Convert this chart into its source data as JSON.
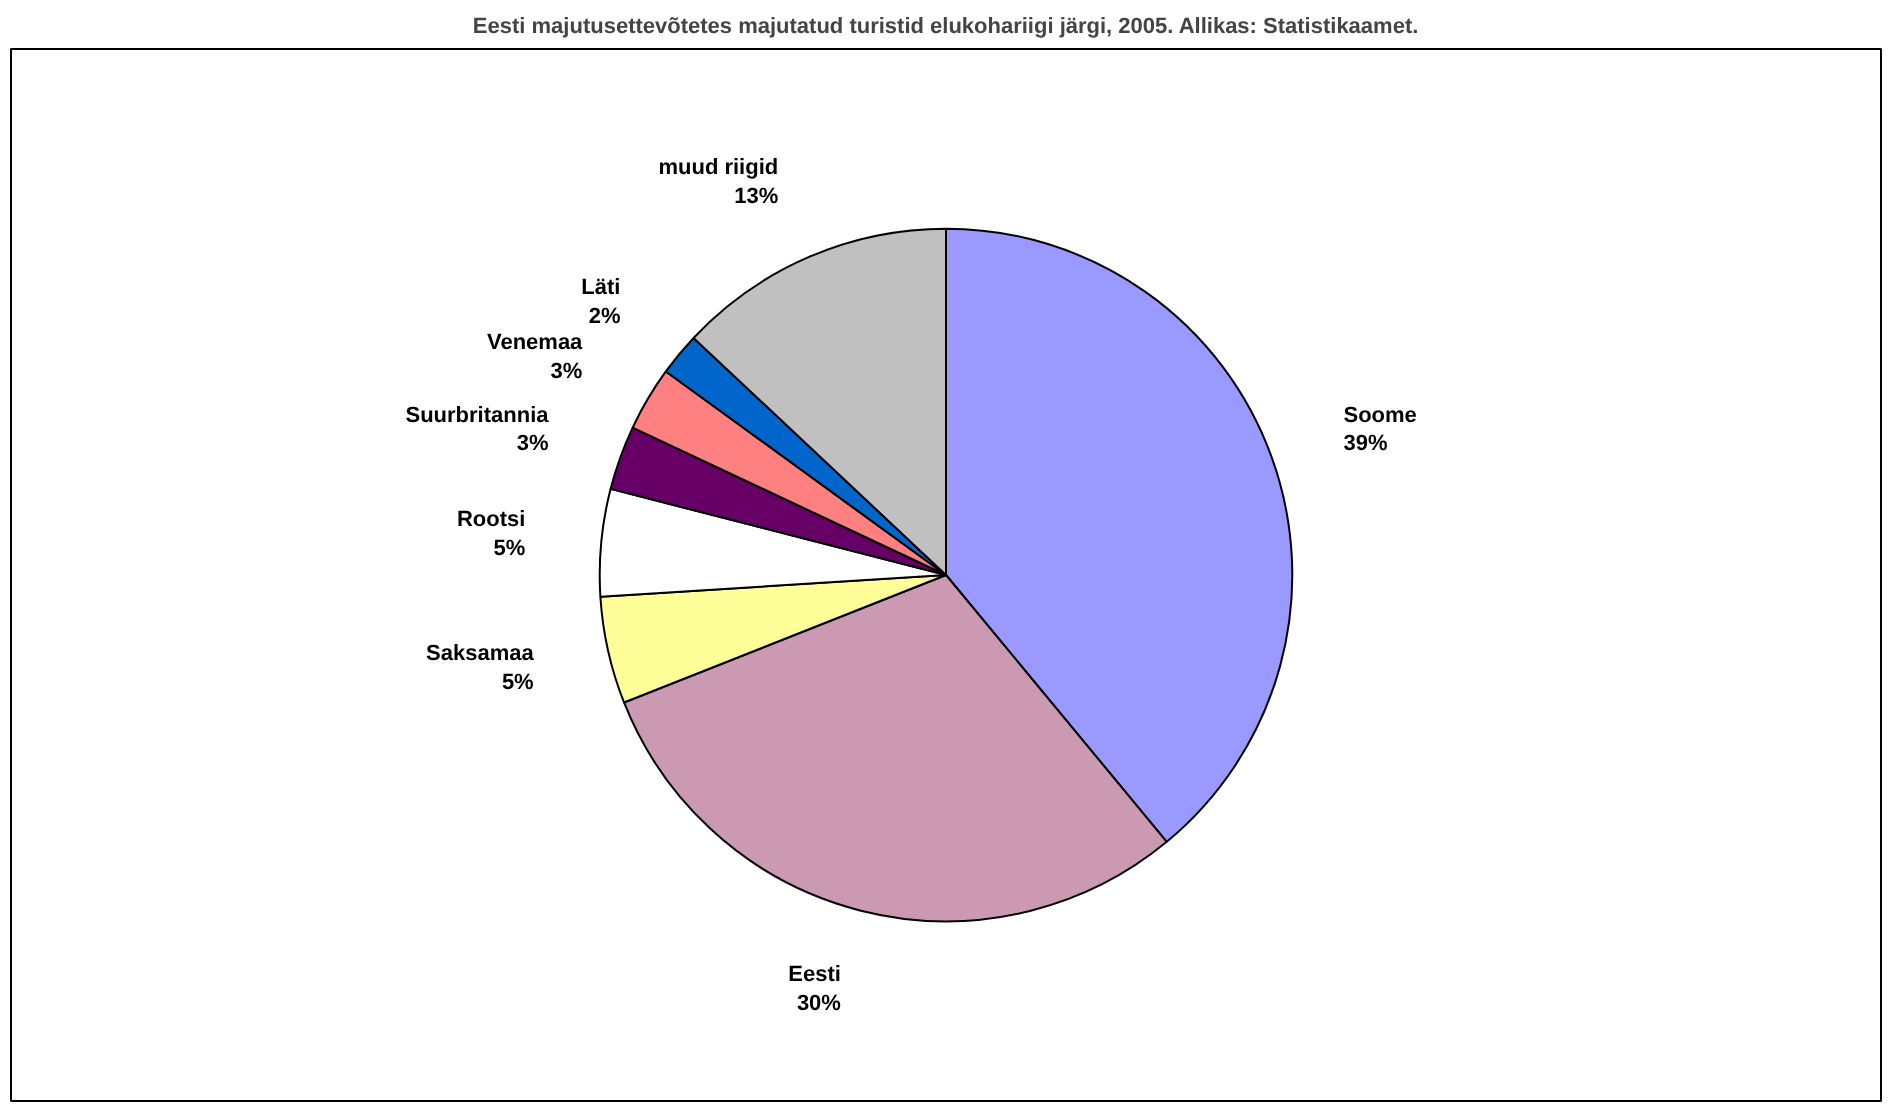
{
  "chart_data": {
    "type": "pie",
    "title": "Eesti majutusettevõtetes majutatud turistid elukohariigi järgi, 2005. Allikas: Statistikaamet.",
    "categories": [
      "Soome",
      "Eesti",
      "Saksamaa",
      "Rootsi",
      "Suurbritannia",
      "Venemaa",
      "Läti",
      "muud riigid"
    ],
    "values": [
      39,
      30,
      5,
      5,
      3,
      3,
      2,
      13
    ],
    "colors": [
      "#9999ff",
      "#cc99b3",
      "#ffff99",
      "#ffffff",
      "#660066",
      "#ff8080",
      "#0066cc",
      "#c0c0c0"
    ],
    "value_labels": [
      "39%",
      "30%",
      "5%",
      "5%",
      "3%",
      "3%",
      "2%",
      "13%"
    ]
  }
}
